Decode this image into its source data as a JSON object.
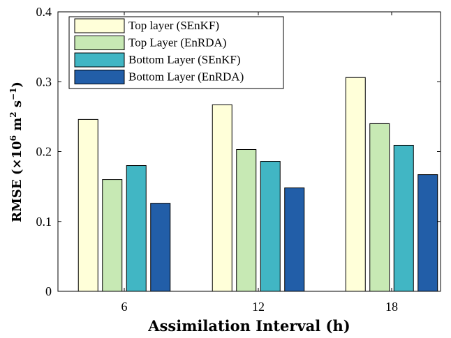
{
  "chart_data": {
    "type": "bar",
    "categories": [
      "6",
      "12",
      "18"
    ],
    "series": [
      {
        "name": "Top layer (SEnKF)",
        "values": [
          0.246,
          0.267,
          0.306
        ],
        "color": "#FFFFD9"
      },
      {
        "name": "Top Layer (EnRDA)",
        "values": [
          0.16,
          0.203,
          0.24
        ],
        "color": "#C7E9B4"
      },
      {
        "name": "Bottom Layer (SEnKF)",
        "values": [
          0.18,
          0.186,
          0.209
        ],
        "color": "#41B6C4"
      },
      {
        "name": "Bottom Layer (EnRDA)",
        "values": [
          0.126,
          0.148,
          0.167
        ],
        "color": "#225EA8"
      }
    ],
    "xlabel": "Assimilation Interval (h)",
    "ylabel": {
      "main": "RMSE (×10",
      "sup1": "6",
      "mid": " m",
      "sup2": "2",
      "tail": " s",
      "sup3": "−1",
      "close": ")"
    },
    "ylim": [
      0,
      0.4
    ],
    "yticks": [
      "0",
      "0.1",
      "0.2",
      "0.3",
      "0.4"
    ],
    "grid": false,
    "legend_position": "top-left"
  }
}
